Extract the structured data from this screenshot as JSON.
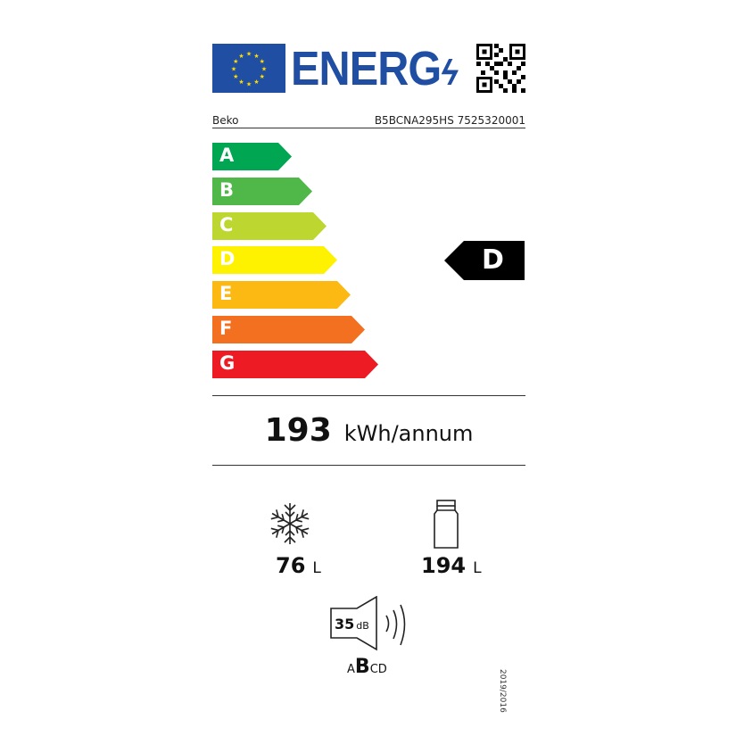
{
  "header": {
    "logo_text": "ENERG",
    "brand": "Beko",
    "model": "B5BCNA295HS 7525320001"
  },
  "scale": {
    "classes": [
      {
        "letter": "A",
        "color": "#00a651"
      },
      {
        "letter": "B",
        "color": "#50b848"
      },
      {
        "letter": "C",
        "color": "#bed630"
      },
      {
        "letter": "D",
        "color": "#fff200"
      },
      {
        "letter": "E",
        "color": "#fdb913"
      },
      {
        "letter": "F",
        "color": "#f37021"
      },
      {
        "letter": "G",
        "color": "#ed1c24"
      }
    ],
    "rated_class": "D"
  },
  "consumption": {
    "value": "193",
    "unit": "kWh/annum"
  },
  "freezer": {
    "icon": "snowflake-icon",
    "value": "76",
    "unit": "L"
  },
  "fridge": {
    "icon": "bottle-icon",
    "value": "194",
    "unit": "L"
  },
  "noise": {
    "icon": "speaker-icon",
    "value": "35",
    "unit": "dB",
    "classes": [
      "A",
      "B",
      "C",
      "D"
    ],
    "selected": "B"
  },
  "regulation": "2019/2016"
}
